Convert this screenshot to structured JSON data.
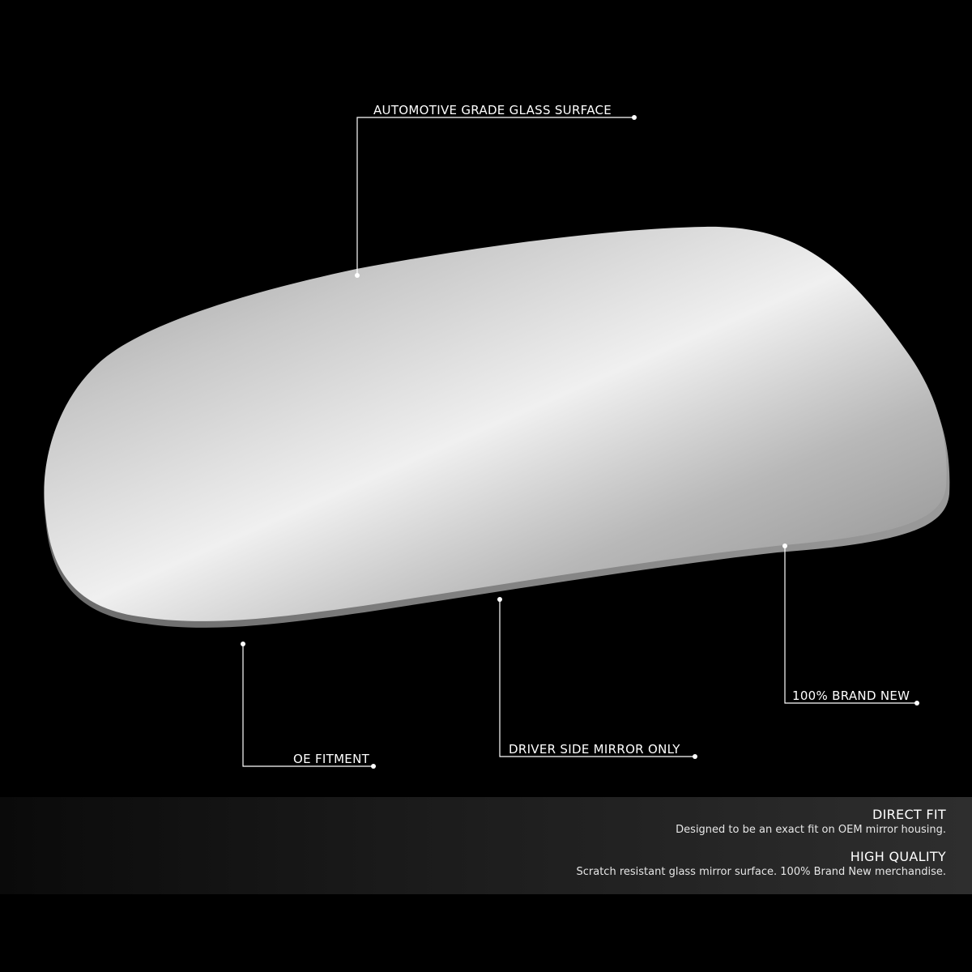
{
  "callouts": {
    "glass_surface": "AUTOMOTIVE GRADE GLASS SURFACE",
    "brand_new": "100% BRAND NEW",
    "oe_fitment": "OE FITMENT",
    "driver_side": "DRIVER SIDE MIRROR ONLY"
  },
  "features": [
    {
      "title": "DIRECT FIT",
      "description": "Designed to be an exact fit on OEM mirror housing."
    },
    {
      "title": "HIGH QUALITY",
      "description": "Scratch resistant glass mirror surface. 100% Brand New merchandise."
    }
  ],
  "colors": {
    "background": "#000000",
    "callout_line": "#ffffff",
    "mirror_light": "#f2f2f2",
    "mirror_dark": "#8c8c8c"
  }
}
